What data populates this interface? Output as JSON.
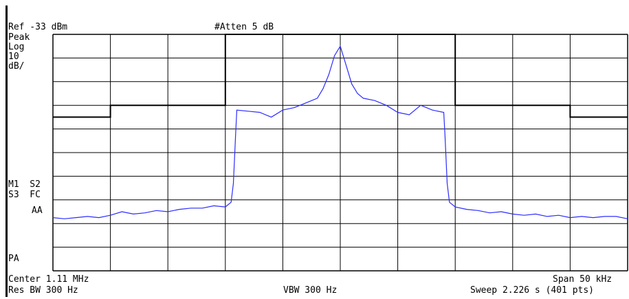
{
  "header": {
    "ref": "Ref -33 dBm",
    "atten": "#Atten 5 dB"
  },
  "side_labels": {
    "detector": "Peak",
    "scale_type": "Log",
    "scale_value": "10",
    "scale_unit": "dB/",
    "markers_1": "M1  S2",
    "markers_2": "S3  FC",
    "markers_3": "AA",
    "pa": "PA"
  },
  "footer": {
    "center": "Center 1.11 MHz",
    "span": "Span 50 kHz",
    "rbw": "Res BW 300 Hz",
    "vbw": "VBW 300 Hz",
    "sweep": "Sweep 2.226 s (401 pts)"
  },
  "colors": {
    "trace": "#2b2bff",
    "grid": "#000000",
    "limit": "#000000"
  },
  "chart_data": {
    "type": "line",
    "grid": true,
    "x_divisions": 10,
    "y_divisions": 10,
    "x_range_khz": [
      -25,
      25
    ],
    "y_range_db": [
      -133,
      -33
    ],
    "series": [
      {
        "x": [
          -25,
          -24,
          -23,
          -22,
          -21,
          -20,
          -19,
          -18,
          -17,
          -16,
          -15,
          -14,
          -13,
          -12,
          -11,
          -10,
          -9.5,
          -9.3,
          -9.1,
          -9,
          -8,
          -7,
          -6,
          -5,
          -4,
          -3,
          -2,
          -1.5,
          -1,
          -0.5,
          0,
          0.5,
          1,
          1.5,
          2,
          3,
          4,
          5,
          6,
          7,
          8,
          9,
          9.1,
          9.3,
          9.5,
          10,
          11,
          12,
          13,
          14,
          15,
          16,
          17,
          18,
          19,
          20,
          21,
          22,
          23,
          24,
          25
        ],
        "y": [
          -110.5,
          -111,
          -110.5,
          -110,
          -110.5,
          -109.5,
          -108,
          -109,
          -108.5,
          -107.5,
          -108,
          -107,
          -106.5,
          -106.5,
          -105.5,
          -106,
          -104,
          -96,
          -75,
          -65,
          -65.5,
          -66,
          -68,
          -65,
          -64,
          -62,
          -60,
          -56,
          -50,
          -42,
          -38,
          -46,
          -54,
          -58,
          -60,
          -61,
          -63,
          -66,
          -67,
          -63,
          -65,
          -66,
          -75,
          -96,
          -104,
          -106,
          -107,
          -107.5,
          -108.5,
          -108,
          -109,
          -109.5,
          -109,
          -110,
          -109.5,
          -110.5,
          -110,
          -110.5,
          -110,
          -110,
          -111
        ]
      }
    ],
    "limit_line": {
      "x": [
        -25,
        -20,
        -20,
        -15,
        -15,
        -10,
        -10,
        10,
        10,
        15,
        15,
        20,
        20,
        25
      ],
      "y": [
        -68,
        -68,
        -63,
        -63,
        -63,
        -63,
        -33,
        -33,
        -63,
        -63,
        -63,
        -63,
        -68,
        -68
      ]
    }
  }
}
